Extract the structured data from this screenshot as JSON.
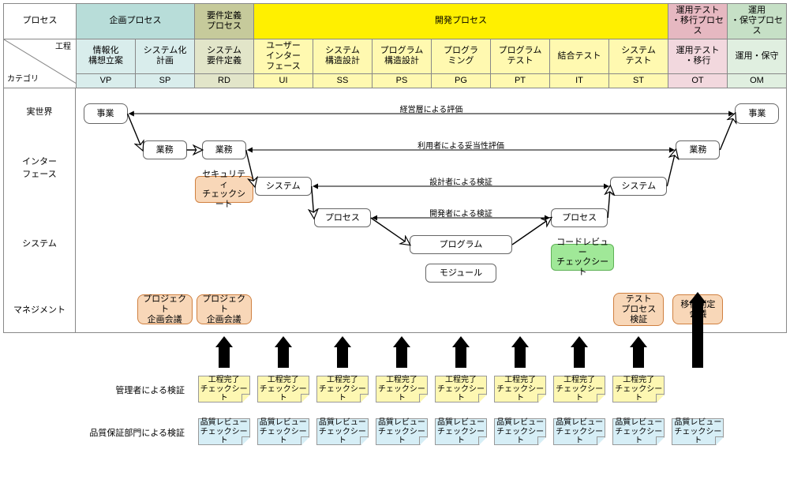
{
  "palette": {
    "cyan": "#b8ddd9",
    "olive": "#c6ca9b",
    "yellow": "#fff000",
    "pink": "#e6b8c1",
    "mint": "#c6e0c6",
    "sub_cyan": "#d9edec",
    "sub_olive": "#e2e5c9",
    "sub_yellow": "#fff9b0",
    "sub_pink": "#f2d8de",
    "sub_mint": "#e0efe0",
    "orange_note": "#f8d7b8",
    "green_note": "#a0e898",
    "sticky_yellow": "#fdf7b2",
    "sticky_blue": "#d6eef6",
    "border": "#888888",
    "arrow": "#000000",
    "background": "#ffffff"
  },
  "topCorners": {
    "process": "プロセス",
    "kouteiTop": "工程",
    "kouteiBottom": "カテゴリ"
  },
  "processGroups": [
    {
      "label": "企画プロセス",
      "cls": "c-cyan",
      "span": 2
    },
    {
      "label": "要件定義\nプロセス",
      "cls": "c-olive",
      "span": 1
    },
    {
      "label": "開発プロセス",
      "cls": "c-yellow",
      "span": 7
    },
    {
      "label": "運用テスト\n・移行プロセス",
      "cls": "c-pink",
      "span": 1
    },
    {
      "label": "運用\n・保守プロセス",
      "cls": "c-mint",
      "span": 1
    }
  ],
  "phases": [
    {
      "label": "情報化\n構想立案",
      "code": "VP",
      "cls": "sub-cyan"
    },
    {
      "label": "システム化\n計画",
      "code": "SP",
      "cls": "sub-cyan"
    },
    {
      "label": "システム\n要件定義",
      "code": "RD",
      "cls": "sub-olive"
    },
    {
      "label": "ユーザー\nインター\nフェース",
      "code": "UI",
      "cls": "sub-yellow"
    },
    {
      "label": "システム\n構造設計",
      "code": "SS",
      "cls": "sub-yellow"
    },
    {
      "label": "プログラム\n構造設計",
      "code": "PS",
      "cls": "sub-yellow"
    },
    {
      "label": "プログラ\nミング",
      "code": "PG",
      "cls": "sub-yellow"
    },
    {
      "label": "プログラム\nテスト",
      "code": "PT",
      "cls": "sub-yellow"
    },
    {
      "label": "結合テスト",
      "code": "IT",
      "cls": "sub-yellow"
    },
    {
      "label": "システム\nテスト",
      "code": "ST",
      "cls": "sub-yellow"
    },
    {
      "label": "運用テスト\n・移行",
      "code": "OT",
      "cls": "sub-pink"
    },
    {
      "label": "運用・保守",
      "code": "OM",
      "cls": "sub-mint"
    }
  ],
  "rowLabels": {
    "real": "実世界",
    "iface": "インター\nフェース",
    "system": "システム",
    "mgmt": "マネジメント"
  },
  "nodes": {
    "biz1": "事業",
    "biz2": "事業",
    "gyomu1": "業務",
    "gyomu2": "業務",
    "gyomu3": "業務",
    "sys1": "システム",
    "sys2": "システム",
    "proc1": "プロセス",
    "proc2": "プロセス",
    "prog": "プログラム",
    "mod": "モジュール",
    "sec": "セキュリティ\nチェックシート",
    "code": "コードレビュー\nチェックシート",
    "mg1": "プロジェクト\n企画会議",
    "mg2": "プロジェクト\n企画会議",
    "mg3": "テスト\nプロセス\n検証",
    "mg4": "移行判定\n会議"
  },
  "overLabels": {
    "l1": "経営層による評価",
    "l2": "利用者による妥当性評価",
    "l3": "設計者による検証",
    "l4": "開発者による検証"
  },
  "bottom": {
    "row1_label": "管理者による検証",
    "row2_label": "品質保証部門による検証",
    "sticky1": "工程完了\nチェックシート",
    "sticky2": "品質レビュー\nチェックシート"
  },
  "layout": {
    "col_width": 75.08,
    "left_width": 92,
    "node_sizes": {
      "biz": [
        56,
        26
      ],
      "gyomu": [
        56,
        24
      ],
      "sys": [
        72,
        24
      ],
      "proc": [
        72,
        24
      ],
      "prog": [
        100,
        24
      ],
      "mod": [
        90,
        24
      ],
      "note": [
        74,
        34
      ],
      "mgmt": [
        70,
        38
      ]
    },
    "arrow_cols": [
      2,
      3,
      4,
      5,
      6,
      7,
      8,
      9
    ],
    "tall_arrow_col": 10,
    "sticky_cols_r1": [
      2,
      3,
      4,
      5,
      6,
      7,
      8,
      9
    ],
    "sticky_cols_r2": [
      2,
      3,
      4,
      5,
      6,
      7,
      8,
      9,
      10
    ]
  }
}
